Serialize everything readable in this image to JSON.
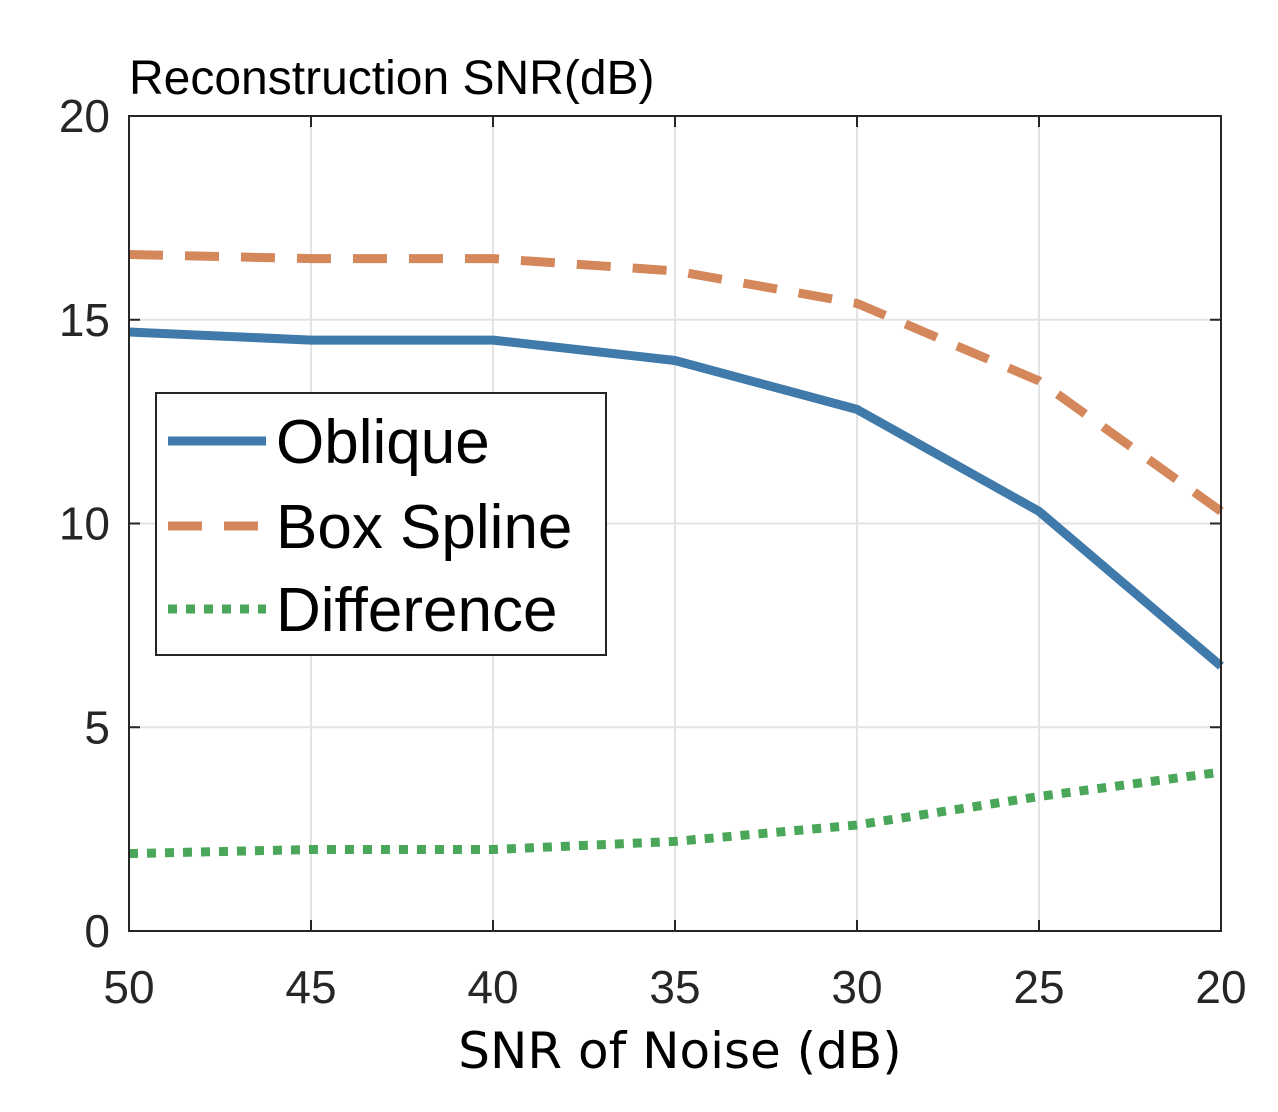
{
  "chart_data": {
    "type": "line",
    "title": "Reconstruction SNR(dB)",
    "xlabel": "SNR of Noise (dB)",
    "ylabel": "",
    "x": [
      50,
      45,
      40,
      35,
      30,
      25,
      20
    ],
    "x_reversed": true,
    "xlim": [
      50,
      20
    ],
    "ylim": [
      0,
      20
    ],
    "x_ticks": [
      50,
      45,
      40,
      35,
      30,
      25,
      20
    ],
    "y_ticks": [
      0,
      5,
      10,
      15,
      20
    ],
    "grid": true,
    "legend_position": "middle-left",
    "series": [
      {
        "name": "Oblique",
        "values": [
          14.7,
          14.5,
          14.5,
          14.0,
          12.8,
          10.3,
          6.5
        ],
        "color": "#3f7aab",
        "style": "solid"
      },
      {
        "name": "Box Spline",
        "values": [
          16.6,
          16.5,
          16.5,
          16.2,
          15.4,
          13.5,
          10.3
        ],
        "color": "#d4875a",
        "style": "dashed"
      },
      {
        "name": "Difference",
        "values": [
          1.9,
          2.0,
          2.0,
          2.2,
          2.6,
          3.3,
          3.9
        ],
        "color": "#4aa659",
        "style": "dotted"
      }
    ]
  }
}
